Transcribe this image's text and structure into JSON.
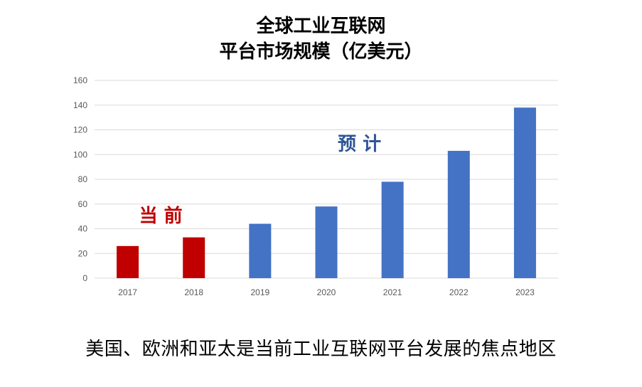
{
  "title_line1": "全球工业互联网",
  "title_line2": "平台市场规模（亿美元）",
  "caption": "美国、欧洲和亚太是当前工业互联网平台发展的焦点地区",
  "colors": {
    "current": "#C00000",
    "forecast": "#4472C4",
    "forecast_text": "#2F5597",
    "grid": "#D9D9D9",
    "axis_text": "#595959"
  },
  "chart_data": {
    "type": "bar",
    "title": "全球工业互联网 平台市场规模（亿美元）",
    "categories": [
      "2017",
      "2018",
      "2019",
      "2020",
      "2021",
      "2022",
      "2023"
    ],
    "values": [
      26,
      33,
      44,
      58,
      78,
      103,
      138
    ],
    "series_status": [
      "当前",
      "当前",
      "预计",
      "预计",
      "预计",
      "预计",
      "预计"
    ],
    "ylim": [
      0,
      160
    ],
    "yticks": [
      0,
      20,
      40,
      60,
      80,
      100,
      120,
      140,
      160
    ],
    "xlabel": "",
    "ylabel": "",
    "grid": true,
    "annotations": [
      {
        "text": "当 前",
        "group": "current"
      },
      {
        "text": "预   计",
        "group": "forecast"
      }
    ]
  }
}
